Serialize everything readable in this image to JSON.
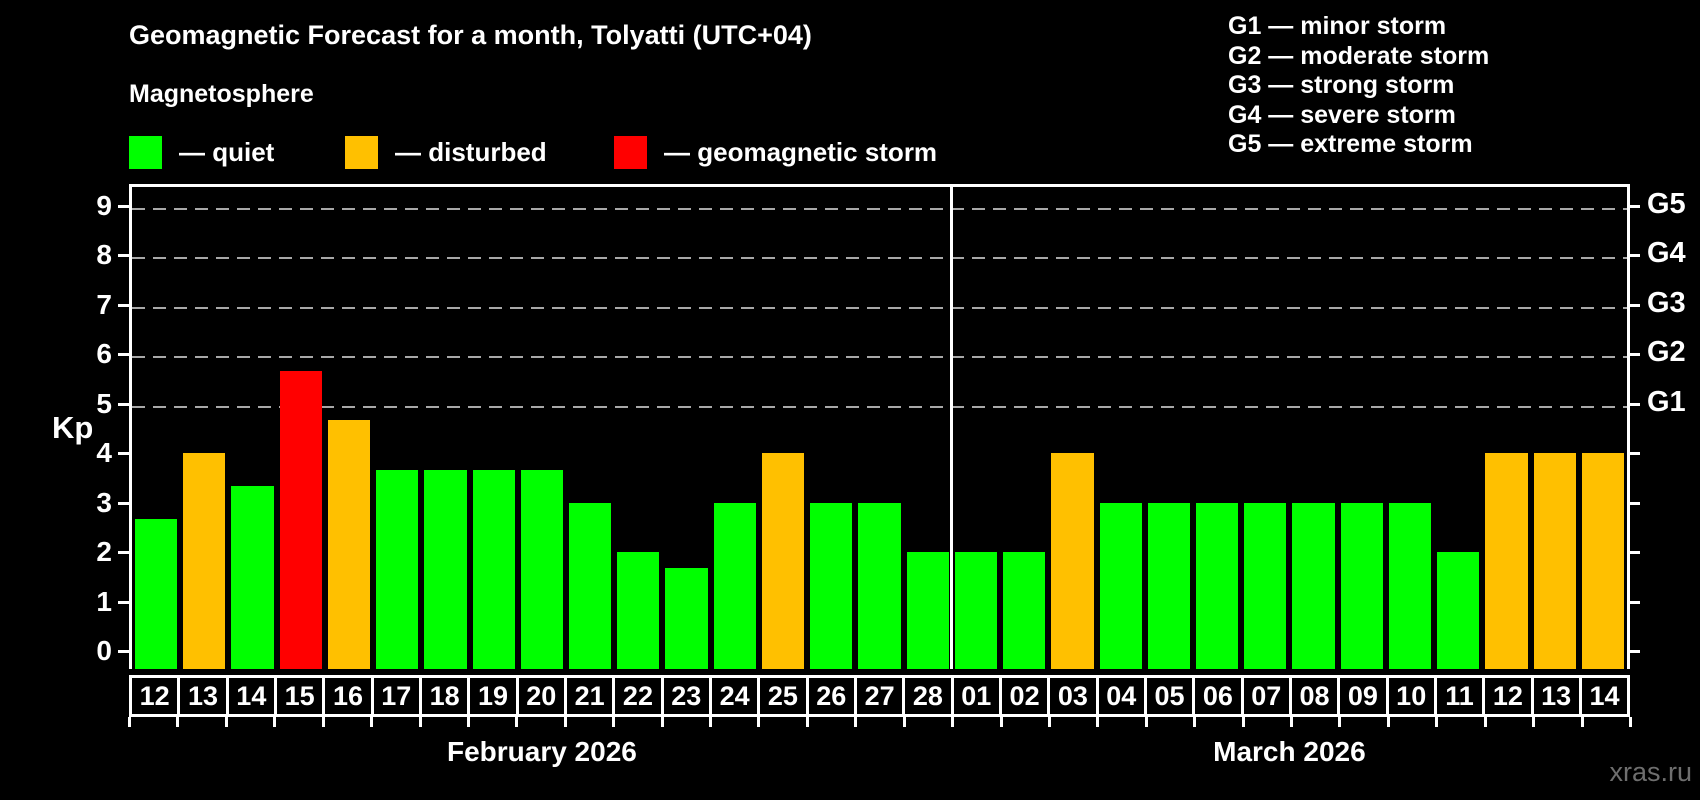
{
  "title": "Geomagnetic Forecast for a month, Tolyatti (UTC+04)",
  "subtitle": "Magnetosphere",
  "legend": [
    {
      "state": "quiet",
      "label": "— quiet"
    },
    {
      "state": "disturbed",
      "label": "— disturbed"
    },
    {
      "state": "storm",
      "label": "— geomagnetic storm"
    }
  ],
  "g_legend": [
    "G1 — minor storm",
    "G2 — moderate storm",
    "G3 — strong storm",
    "G4 — severe storm",
    "G5 — extreme storm"
  ],
  "watermark": "xras.ru",
  "colors": {
    "quiet": "#00ff00",
    "disturbed": "#ffc000",
    "storm": "#ff0000",
    "background": "#000000",
    "text": "#ffffff",
    "grid": "#a8a8a8",
    "watermark": "#6e6e6e"
  },
  "chart_data": {
    "type": "bar",
    "ylabel": "Kp",
    "ylim": [
      0,
      9
    ],
    "yticks": [
      0,
      1,
      2,
      3,
      4,
      5,
      6,
      7,
      8,
      9
    ],
    "gridlines_at_kp": [
      5,
      6,
      7,
      8,
      9
    ],
    "grid_style": "dashed",
    "right_axis": [
      {
        "kp": 5,
        "label": "G1"
      },
      {
        "kp": 6,
        "label": "G2"
      },
      {
        "kp": 7,
        "label": "G3"
      },
      {
        "kp": 8,
        "label": "G4"
      },
      {
        "kp": 9,
        "label": "G5"
      }
    ],
    "months": [
      {
        "label": "February 2026",
        "bars": [
          {
            "day": "12",
            "kp": 2.67,
            "state": "quiet"
          },
          {
            "day": "13",
            "kp": 4.0,
            "state": "disturbed"
          },
          {
            "day": "14",
            "kp": 3.33,
            "state": "quiet"
          },
          {
            "day": "15",
            "kp": 5.67,
            "state": "storm"
          },
          {
            "day": "16",
            "kp": 4.67,
            "state": "disturbed"
          },
          {
            "day": "17",
            "kp": 3.67,
            "state": "quiet"
          },
          {
            "day": "18",
            "kp": 3.67,
            "state": "quiet"
          },
          {
            "day": "19",
            "kp": 3.67,
            "state": "quiet"
          },
          {
            "day": "20",
            "kp": 3.67,
            "state": "quiet"
          },
          {
            "day": "21",
            "kp": 3.0,
            "state": "quiet"
          },
          {
            "day": "22",
            "kp": 2.0,
            "state": "quiet"
          },
          {
            "day": "23",
            "kp": 1.67,
            "state": "quiet"
          },
          {
            "day": "24",
            "kp": 3.0,
            "state": "quiet"
          },
          {
            "day": "25",
            "kp": 4.0,
            "state": "disturbed"
          },
          {
            "day": "26",
            "kp": 3.0,
            "state": "quiet"
          },
          {
            "day": "27",
            "kp": 3.0,
            "state": "quiet"
          },
          {
            "day": "28",
            "kp": 2.0,
            "state": "quiet"
          }
        ]
      },
      {
        "label": "March 2026",
        "bars": [
          {
            "day": "01",
            "kp": 2.0,
            "state": "quiet"
          },
          {
            "day": "02",
            "kp": 2.0,
            "state": "quiet"
          },
          {
            "day": "03",
            "kp": 4.0,
            "state": "disturbed"
          },
          {
            "day": "04",
            "kp": 3.0,
            "state": "quiet"
          },
          {
            "day": "05",
            "kp": 3.0,
            "state": "quiet"
          },
          {
            "day": "06",
            "kp": 3.0,
            "state": "quiet"
          },
          {
            "day": "07",
            "kp": 3.0,
            "state": "quiet"
          },
          {
            "day": "08",
            "kp": 3.0,
            "state": "quiet"
          },
          {
            "day": "09",
            "kp": 3.0,
            "state": "quiet"
          },
          {
            "day": "10",
            "kp": 3.0,
            "state": "quiet"
          },
          {
            "day": "11",
            "kp": 2.0,
            "state": "quiet"
          },
          {
            "day": "12",
            "kp": 4.0,
            "state": "disturbed"
          },
          {
            "day": "13",
            "kp": 4.0,
            "state": "disturbed"
          },
          {
            "day": "14",
            "kp": 4.0,
            "state": "disturbed"
          }
        ]
      }
    ]
  }
}
